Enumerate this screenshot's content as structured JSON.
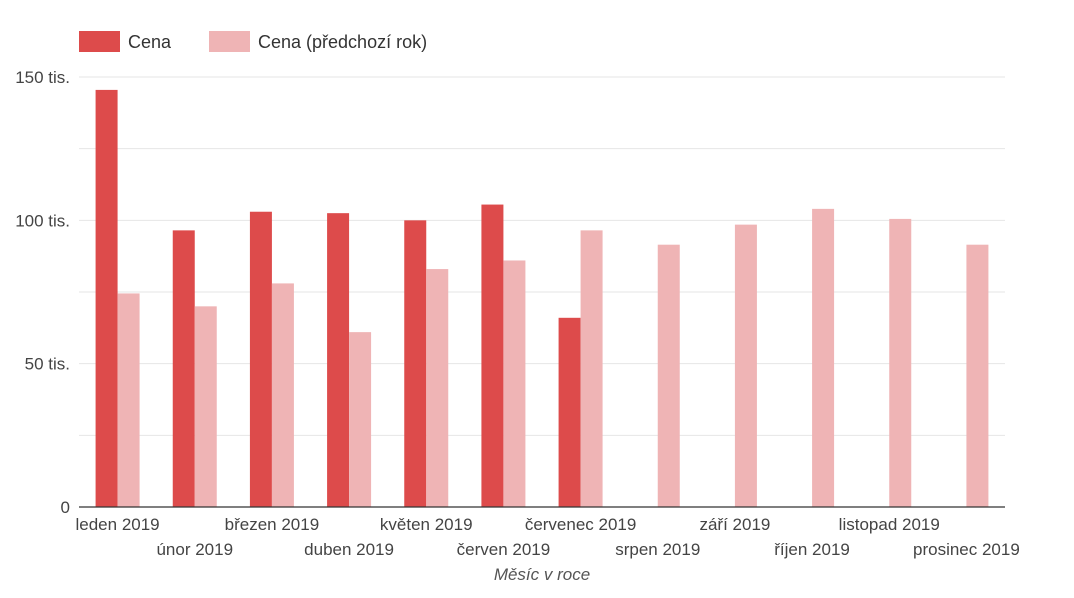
{
  "chart_data": {
    "type": "bar",
    "title": "",
    "xlabel": "Měsíc v roce",
    "ylabel": "",
    "ylim": [
      0,
      150000
    ],
    "yticks": [
      {
        "value": 0,
        "label": "0"
      },
      {
        "value": 50000,
        "label": "50 tis."
      },
      {
        "value": 100000,
        "label": "100 tis."
      },
      {
        "value": 150000,
        "label": "150 tis."
      }
    ],
    "grid": true,
    "legend_position": "top-left",
    "categories": [
      "leden 2019",
      "únor 2019",
      "březen 2019",
      "duben 2019",
      "květen 2019",
      "červen 2019",
      "červenec 2019",
      "srpen 2019",
      "září 2019",
      "říjen 2019",
      "listopad 2019",
      "prosinec 2019"
    ],
    "series": [
      {
        "name": "Cena",
        "color": "#dd4b4b",
        "values": [
          145500,
          96500,
          103000,
          102500,
          100000,
          105500,
          66000,
          null,
          null,
          null,
          null,
          null
        ]
      },
      {
        "name": "Cena (předchozí rok)",
        "color": "#efb4b5",
        "values": [
          74500,
          70000,
          78000,
          61000,
          83000,
          86000,
          96500,
          91500,
          98500,
          104000,
          100500,
          91500
        ]
      }
    ]
  }
}
